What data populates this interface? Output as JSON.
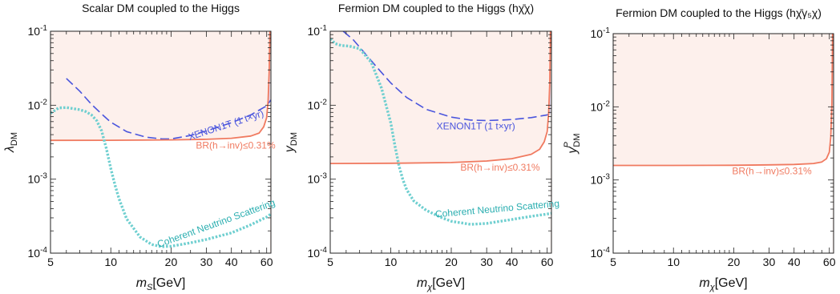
{
  "chart_data": [
    {
      "type": "line",
      "title": "Scalar DM coupled to the Higgs",
      "xlabel": "m_S[GeV]",
      "xlabel_main": "m",
      "xlabel_sub": "S",
      "xlabel_unit": "[GeV]",
      "ylabel": "λ_DM",
      "ylabel_main": "λ",
      "ylabel_sub": "DM",
      "ylabel_sup": "",
      "xscale": "log",
      "yscale": "log",
      "xlim": [
        5,
        63
      ],
      "ylim": [
        0.0001,
        0.1
      ],
      "xticks": [
        "5",
        "10",
        "20",
        "30",
        "40",
        "60"
      ],
      "xtick_values": [
        5,
        10,
        20,
        30,
        40,
        60
      ],
      "yticks": [
        {
          "base": "10",
          "exp": "-4"
        },
        {
          "base": "10",
          "exp": "-3"
        },
        {
          "base": "10",
          "exp": "-2"
        },
        {
          "base": "10",
          "exp": "-1"
        }
      ],
      "ytick_values": [
        0.0001,
        0.001,
        0.01,
        0.1
      ],
      "series": [
        {
          "name": "XENON1T (1 t×yr)",
          "style": "dashed",
          "color": "#4a55dd",
          "fill_color": "#dcd2ee",
          "x": [
            6,
            7,
            8,
            9,
            10,
            12,
            15,
            18,
            20,
            25,
            30,
            40,
            50,
            60,
            63
          ],
          "y": [
            0.023,
            0.0155,
            0.0103,
            0.0076,
            0.0059,
            0.0044,
            0.0037,
            0.0035,
            0.0035,
            0.0039,
            0.0045,
            0.0058,
            0.0074,
            0.0098,
            0.0118
          ]
        },
        {
          "name": "BR(h→inv)≤0.31%",
          "style": "solid",
          "color": "#f07a60",
          "fill_color": "#fdf0ec",
          "x": [
            5,
            10,
            20,
            30,
            40,
            50,
            55,
            58,
            60,
            61,
            61.8,
            62.3
          ],
          "y": [
            0.00335,
            0.00336,
            0.0034,
            0.00346,
            0.00357,
            0.00383,
            0.0042,
            0.0051,
            0.0068,
            0.0115,
            0.03,
            0.1
          ]
        },
        {
          "name": "Coherent Neutrino Scattering",
          "style": "dotted",
          "color": "#6fcfd0",
          "x": [
            5,
            5.5,
            6,
            7,
            7.5,
            8,
            8.5,
            9,
            9.5,
            10,
            10.5,
            11,
            12,
            14,
            16,
            18,
            20,
            25,
            30,
            40,
            50,
            60,
            63
          ],
          "y": [
            0.0078,
            0.0092,
            0.0093,
            0.0087,
            0.0082,
            0.0074,
            0.0062,
            0.0045,
            0.0026,
            0.0014,
            0.00083,
            0.00054,
            0.00029,
            0.000165,
            0.000131,
            0.000122,
            0.000124,
            0.000138,
            0.000153,
            0.000188,
            0.000242,
            0.000308,
            0.000338
          ]
        }
      ],
      "annotations": [
        {
          "text": "XENON1T (1 t×yr)",
          "x": 38,
          "y": 0.0049,
          "angle": -18,
          "color": "#4a55dd"
        },
        {
          "text": "BR(h→inv)≤0.31%",
          "x": 42,
          "y": 0.0026,
          "angle": 0,
          "color": "#f07a60"
        },
        {
          "text": "Coherent Neutrino Scattering",
          "x": 34,
          "y": 0.00023,
          "angle": -20,
          "color": "#2aaeb0"
        }
      ],
      "grid": false,
      "legend": "none"
    },
    {
      "type": "line",
      "title": "Fermion DM coupled to the Higgs (hχ̄χ)",
      "xlabel": "m_χ[GeV]",
      "xlabel_main": "m",
      "xlabel_sub": "χ",
      "xlabel_unit": "[GeV]",
      "ylabel": "y_DM",
      "ylabel_main": "y",
      "ylabel_sub": "DM",
      "ylabel_sup": "",
      "xscale": "log",
      "yscale": "log",
      "xlim": [
        5,
        63
      ],
      "ylim": [
        0.0001,
        0.1
      ],
      "xticks": [
        "5",
        "10",
        "20",
        "30",
        "40",
        "60"
      ],
      "xtick_values": [
        5,
        10,
        20,
        30,
        40,
        60
      ],
      "yticks": [
        {
          "base": "10",
          "exp": "-4"
        },
        {
          "base": "10",
          "exp": "-3"
        },
        {
          "base": "10",
          "exp": "-2"
        },
        {
          "base": "10",
          "exp": "-1"
        }
      ],
      "ytick_values": [
        0.0001,
        0.001,
        0.01,
        0.1
      ],
      "series": [
        {
          "name": "XENON1T (1 t×yr)",
          "style": "dashed",
          "color": "#4a55dd",
          "fill_color": "#dcd2ee",
          "x": [
            5.8,
            6.5,
            7.5,
            8.5,
            10,
            12,
            15,
            20,
            25,
            30,
            35,
            40,
            50,
            60,
            63
          ],
          "y": [
            0.1,
            0.077,
            0.049,
            0.033,
            0.02,
            0.0127,
            0.0088,
            0.0069,
            0.0063,
            0.0062,
            0.0063,
            0.0064,
            0.0068,
            0.0074,
            0.0077
          ]
        },
        {
          "name": "BR(h→inv)≤0.31%",
          "style": "solid",
          "color": "#f07a60",
          "fill_color": "#fdf0ec",
          "x": [
            5,
            10,
            20,
            30,
            40,
            50,
            55,
            58,
            60,
            61,
            61.8,
            62.3
          ],
          "y": [
            0.00163,
            0.00164,
            0.00168,
            0.00176,
            0.00189,
            0.00217,
            0.00253,
            0.0032,
            0.0044,
            0.0078,
            0.02,
            0.1
          ]
        },
        {
          "name": "Coherent Neutrino Scattering",
          "style": "dotted",
          "color": "#6fcfd0",
          "x": [
            5,
            5.3,
            5.7,
            6.2,
            7,
            8,
            9,
            10,
            10.5,
            11,
            11.5,
            12,
            13,
            15,
            18,
            20,
            25,
            30,
            40,
            50,
            60,
            63
          ],
          "y": [
            0.079,
            0.068,
            0.064,
            0.063,
            0.058,
            0.038,
            0.017,
            0.0058,
            0.0028,
            0.0015,
            0.00098,
            0.00072,
            0.00051,
            0.00038,
            0.0003,
            0.00027,
            0.000245,
            0.000252,
            0.000285,
            0.000315,
            0.000338,
            0.000345
          ]
        }
      ],
      "annotations": [
        {
          "text": "XENON1T (1 t×yr)",
          "x": 26.5,
          "y": 0.0047,
          "angle": 0,
          "color": "#4a55dd"
        },
        {
          "text": "BR(h→inv)≤0.31%",
          "x": 35,
          "y": 0.0013,
          "angle": 0,
          "color": "#f07a60"
        },
        {
          "text": "Coherent Neutrino Scattering",
          "x": 34,
          "y": 0.00036,
          "angle": -5,
          "color": "#2aaeb0"
        }
      ],
      "grid": false,
      "legend": "none"
    },
    {
      "type": "line",
      "title": "Fermion DM coupled to the Higgs (hχ̄γ₅χ)",
      "xlabel": "m_χ[GeV]",
      "xlabel_main": "m",
      "xlabel_sub": "χ",
      "xlabel_unit": "[GeV]",
      "ylabel": "y_DM^P",
      "ylabel_main": "y",
      "ylabel_sub": "DM",
      "ylabel_sup": "P",
      "xscale": "log",
      "yscale": "log",
      "xlim": [
        5,
        63
      ],
      "ylim": [
        0.0001,
        0.1
      ],
      "xticks": [
        "5",
        "10",
        "20",
        "30",
        "40",
        "60"
      ],
      "xtick_values": [
        5,
        10,
        20,
        30,
        40,
        60
      ],
      "yticks": [
        {
          "base": "10",
          "exp": "-4"
        },
        {
          "base": "10",
          "exp": "-3"
        },
        {
          "base": "10",
          "exp": "-2"
        },
        {
          "base": "10",
          "exp": "-1"
        }
      ],
      "ytick_values": [
        0.0001,
        0.001,
        0.01,
        0.1
      ],
      "series": [
        {
          "name": "BR(h→inv)≤0.31%",
          "style": "solid",
          "color": "#f07a60",
          "fill_color": "#fdf0ec",
          "x": [
            5,
            10,
            20,
            30,
            40,
            50,
            55,
            58,
            60,
            61,
            61.8,
            62.3
          ],
          "y": [
            0.00158,
            0.00158,
            0.00159,
            0.00161,
            0.00163,
            0.00168,
            0.00176,
            0.00195,
            0.0024,
            0.0039,
            0.011,
            0.1
          ]
        }
      ],
      "annotations": [
        {
          "text": "BR(h→inv)≤0.31%",
          "x": 31,
          "y": 0.0012,
          "angle": 0,
          "color": "#f07a60"
        }
      ],
      "grid": false,
      "legend": "none"
    }
  ]
}
